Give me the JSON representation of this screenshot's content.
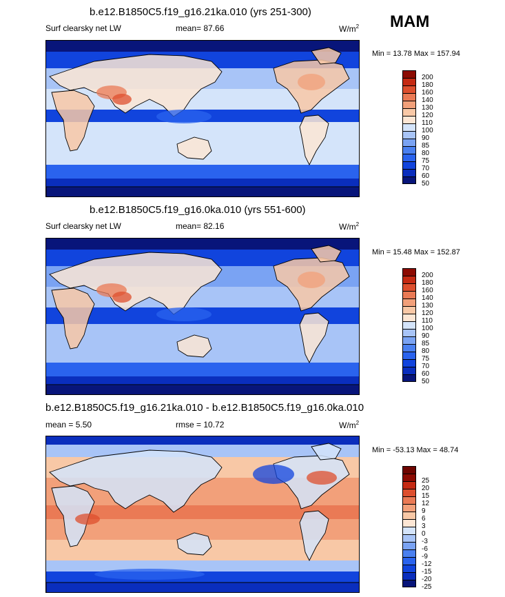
{
  "season": "MAM",
  "units": "W/m",
  "units_sup": "2",
  "panels": [
    {
      "title": "b.e12.B1850C5.f19_g16.21ka.010 (yrs 251-300)",
      "left_label": "Surf clearsky net LW",
      "mean_label": "mean=",
      "mean_value": "87.66",
      "stat_text": "Min =  13.78 Max = 157.94"
    },
    {
      "title": "b.e12.B1850C5.f19_g16.0ka.010 (yrs 551-600)",
      "left_label": "Surf clearsky net LW",
      "mean_label": "mean=",
      "mean_value": "82.16",
      "stat_text": "Min =  15.48 Max = 152.87"
    },
    {
      "title": "b.e12.B1850C5.f19_g16.21ka.010 - b.e12.B1850C5.f19_g16.0ka.010",
      "left_label": "mean =   5.50",
      "mean_label": "rmse =",
      "mean_value": "10.72",
      "stat_text": "Min = -53.13 Max =  48.74"
    }
  ],
  "chart_data": [
    {
      "type": "heatmap",
      "title": "b.e12.B1850C5.f19_g16.21ka.010 (yrs 251-300)",
      "variable": "Surf clearsky net LW",
      "units": "W/m2",
      "mean": 87.66,
      "min": 13.78,
      "max": 157.94,
      "colorbar_levels": [
        50,
        60,
        70,
        75,
        80,
        85,
        90,
        100,
        110,
        120,
        130,
        140,
        160,
        180,
        200
      ],
      "colors": [
        "#08157a",
        "#0a2ebd",
        "#1144dd",
        "#2a63ee",
        "#4a80f0",
        "#7aa3f3",
        "#a8c4f7",
        "#d4e4fa",
        "#fce6d4",
        "#f8c8a6",
        "#f2a07a",
        "#ea7a55",
        "#dd4f2e",
        "#c52a13",
        "#8c0b02"
      ]
    },
    {
      "type": "heatmap",
      "title": "b.e12.B1850C5.f19_g16.0ka.010 (yrs 551-600)",
      "variable": "Surf clearsky net LW",
      "units": "W/m2",
      "mean": 82.16,
      "min": 15.48,
      "max": 152.87,
      "colorbar_levels": [
        50,
        60,
        70,
        75,
        80,
        85,
        90,
        100,
        110,
        120,
        130,
        140,
        160,
        180,
        200
      ],
      "colors": [
        "#08157a",
        "#0a2ebd",
        "#1144dd",
        "#2a63ee",
        "#4a80f0",
        "#7aa3f3",
        "#a8c4f7",
        "#d4e4fa",
        "#fce6d4",
        "#f8c8a6",
        "#f2a07a",
        "#ea7a55",
        "#dd4f2e",
        "#c52a13",
        "#8c0b02"
      ]
    },
    {
      "type": "heatmap",
      "title": "b.e12.B1850C5.f19_g16.21ka.010 - b.e12.B1850C5.f19_g16.0ka.010",
      "units": "W/m2",
      "mean": 5.5,
      "rmse": 10.72,
      "min": -53.13,
      "max": 48.74,
      "colorbar_levels": [
        -25,
        -20,
        -15,
        -12,
        -9,
        -6,
        -3,
        0,
        3,
        6,
        9,
        12,
        15,
        20,
        25
      ],
      "colors": [
        "#08157a",
        "#0a2ebd",
        "#1144dd",
        "#2a63ee",
        "#4a80f0",
        "#7aa3f3",
        "#a8c4f7",
        "#d4e4fa",
        "#fce6d4",
        "#f8c8a6",
        "#f2a07a",
        "#ea7a55",
        "#dd4f2e",
        "#c52a13",
        "#8c0b02",
        "#6e0500"
      ]
    }
  ]
}
